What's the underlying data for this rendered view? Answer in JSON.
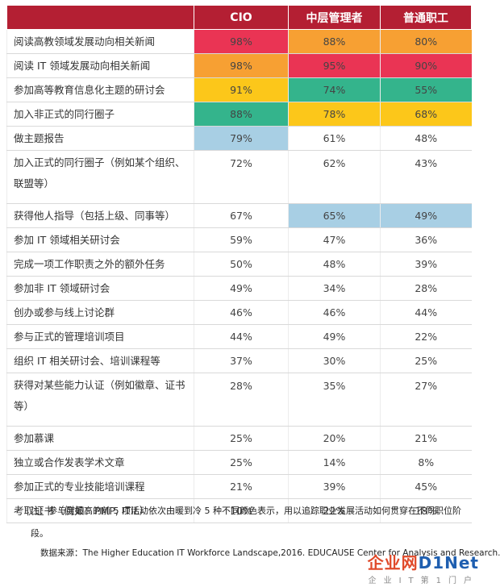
{
  "colors": {
    "header_bg": "#b41f33",
    "red": "#ea3454",
    "orange": "#f7a033",
    "yellow": "#fcc71a",
    "teal": "#34b48c",
    "lightblue": "#a8cfe4",
    "plain": "#ffffff"
  },
  "table": {
    "headers": [
      "",
      "CIO",
      "中层管理者",
      "普通职工"
    ],
    "rows": [
      {
        "label": "阅读高教领域发展动向相关新闻",
        "values": [
          "98%",
          "88%",
          "80%"
        ],
        "colors": [
          "red",
          "orange",
          "orange"
        ],
        "tall": false
      },
      {
        "label": "阅读 IT 领域发展动向相关新闻",
        "values": [
          "98%",
          "95%",
          "90%"
        ],
        "colors": [
          "orange",
          "red",
          "red"
        ],
        "tall": false
      },
      {
        "label": "参加高等教育信息化主题的研讨会",
        "values": [
          "91%",
          "74%",
          "55%"
        ],
        "colors": [
          "yellow",
          "teal",
          "teal"
        ],
        "tall": false
      },
      {
        "label": "加入非正式的同行圈子",
        "values": [
          "88%",
          "78%",
          "68%"
        ],
        "colors": [
          "teal",
          "yellow",
          "yellow"
        ],
        "tall": false
      },
      {
        "label": "做主题报告",
        "values": [
          "79%",
          "61%",
          "48%"
        ],
        "colors": [
          "lightblue",
          "plain",
          "plain"
        ],
        "tall": false
      },
      {
        "label": "加入正式的同行圈子（例如某个组织、联盟等）",
        "values": [
          "72%",
          "62%",
          "43%"
        ],
        "colors": [
          "plain",
          "plain",
          "plain"
        ],
        "tall": true
      },
      {
        "label": "获得他人指导（包括上级、同事等）",
        "values": [
          "67%",
          "65%",
          "49%"
        ],
        "colors": [
          "plain",
          "lightblue",
          "lightblue"
        ],
        "tall": false
      },
      {
        "label": "参加 IT 领域相关研讨会",
        "values": [
          "59%",
          "47%",
          "36%"
        ],
        "colors": [
          "plain",
          "plain",
          "plain"
        ],
        "tall": false
      },
      {
        "label": "完成一项工作职责之外的额外任务",
        "values": [
          "50%",
          "48%",
          "39%"
        ],
        "colors": [
          "plain",
          "plain",
          "plain"
        ],
        "tall": false
      },
      {
        "label": "参加非 IT 领域研讨会",
        "values": [
          "49%",
          "34%",
          "28%"
        ],
        "colors": [
          "plain",
          "plain",
          "plain"
        ],
        "tall": false
      },
      {
        "label": "创办或参与线上讨论群",
        "values": [
          "46%",
          "46%",
          "44%"
        ],
        "colors": [
          "plain",
          "plain",
          "plain"
        ],
        "tall": false
      },
      {
        "label": "参与正式的管理培训项目",
        "values": [
          "44%",
          "49%",
          "22%"
        ],
        "colors": [
          "plain",
          "plain",
          "plain"
        ],
        "tall": false
      },
      {
        "label": "组织 IT 相关研讨会、培训课程等",
        "values": [
          "37%",
          "30%",
          "25%"
        ],
        "colors": [
          "plain",
          "plain",
          "plain"
        ],
        "tall": false
      },
      {
        "label": "获得对某些能力认证（例如徽章、证书等）",
        "values": [
          "28%",
          "35%",
          "27%"
        ],
        "colors": [
          "plain",
          "plain",
          "plain"
        ],
        "tall": true
      },
      {
        "label": "参加慕课",
        "values": [
          "25%",
          "20%",
          "21%"
        ],
        "colors": [
          "plain",
          "plain",
          "plain"
        ],
        "tall": false
      },
      {
        "label": "独立或合作发表学术文章",
        "values": [
          "25%",
          "14%",
          "8%"
        ],
        "colors": [
          "plain",
          "plain",
          "plain"
        ],
        "tall": false
      },
      {
        "label": "参加正式的专业技能培训课程",
        "values": [
          "21%",
          "39%",
          "45%"
        ],
        "colors": [
          "plain",
          "plain",
          "plain"
        ],
        "tall": false
      },
      {
        "label": "考取证书（例如：PMP, ITIL）",
        "values": [
          "10%",
          "22%",
          "18%"
        ],
        "colors": [
          "plain",
          "plain",
          "plain"
        ],
        "tall": false
      }
    ]
  },
  "note": "注：参与度最高的前 5 项活动依次由暖到冷 5 种不同颜色表示，用以追踪职业发展活动如何贯穿在不同职位阶段。",
  "source": "数据来源：The Higher Education IT Workforce Landscape,2016. EDUCAUSE Center for Analysis and Research.",
  "watermark": {
    "main_a": "企业网",
    "main_b": "D1Net",
    "sub": "企业IT第1门户"
  }
}
